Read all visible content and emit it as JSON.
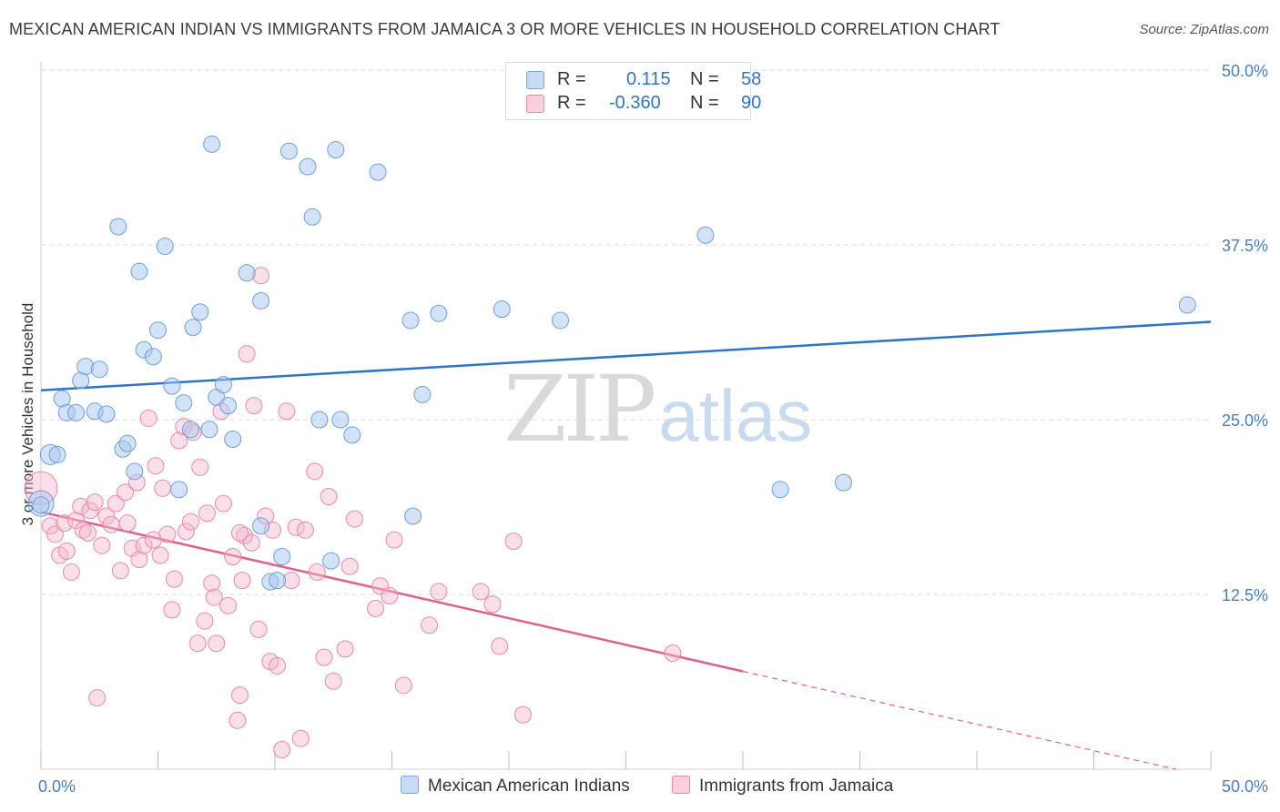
{
  "title": "MEXICAN AMERICAN INDIAN VS IMMIGRANTS FROM JAMAICA 3 OR MORE VEHICLES IN HOUSEHOLD CORRELATION CHART",
  "source": "Source: ZipAtlas.com",
  "watermark": {
    "zip": "ZIP",
    "atlas": "atlas"
  },
  "legend_top": [
    {
      "r_label": "R =",
      "r_value": "0.115",
      "n_label": "N =",
      "n_value": "58",
      "color": "#a8c8ef"
    },
    {
      "r_label": "R =",
      "r_value": "-0.360",
      "n_label": "N =",
      "n_value": "90",
      "color": "#f5b8cb"
    }
  ],
  "colors": {
    "blue_fill": "#a8c8ef",
    "blue_stroke": "#6f9fd8",
    "blue_line": "#2f74c8",
    "pink_fill": "#f5b8cb",
    "pink_stroke": "#e88aa6",
    "pink_line": "#e0608a",
    "tick_text": "#4a7cc4",
    "grid": "#d8d8d8"
  },
  "chart_data": {
    "type": "scatter",
    "title": "MEXICAN AMERICAN INDIAN VS IMMIGRANTS FROM JAMAICA 3 OR MORE VEHICLES IN HOUSEHOLD CORRELATION CHART",
    "xlabel": "",
    "ylabel": "3 or more Vehicles in Household",
    "xlim": [
      0,
      50
    ],
    "ylim": [
      0,
      50
    ],
    "x_tick_labels": [
      "0.0%",
      "50.0%"
    ],
    "y_ticks": [
      12.5,
      25.0,
      37.5,
      50.0
    ],
    "y_tick_labels": [
      "12.5%",
      "25.0%",
      "37.5%",
      "50.0%"
    ],
    "grid": true,
    "legend_position": "bottom",
    "series": [
      {
        "name": "Mexican American Indians",
        "color": "#a8c8ef",
        "trend": {
          "x": [
            0,
            50
          ],
          "y": [
            27.1,
            32.0
          ],
          "dashed_from_x": null
        },
        "points": [
          [
            0.0,
            19.0
          ],
          [
            0.4,
            22.5
          ],
          [
            0.7,
            22.5
          ],
          [
            0.9,
            26.5
          ],
          [
            1.1,
            25.5
          ],
          [
            1.5,
            25.5
          ],
          [
            1.7,
            27.8
          ],
          [
            1.9,
            28.8
          ],
          [
            2.3,
            25.6
          ],
          [
            2.5,
            28.6
          ],
          [
            2.8,
            25.4
          ],
          [
            3.3,
            38.8
          ],
          [
            3.5,
            22.9
          ],
          [
            3.7,
            23.3
          ],
          [
            4.0,
            21.3
          ],
          [
            4.2,
            35.6
          ],
          [
            4.4,
            30.0
          ],
          [
            4.8,
            29.5
          ],
          [
            5.0,
            31.4
          ],
          [
            5.3,
            37.4
          ],
          [
            5.6,
            27.4
          ],
          [
            5.9,
            20.0
          ],
          [
            6.1,
            26.2
          ],
          [
            6.4,
            24.3
          ],
          [
            6.5,
            31.6
          ],
          [
            6.8,
            32.7
          ],
          [
            7.2,
            24.3
          ],
          [
            7.3,
            44.7
          ],
          [
            7.5,
            26.6
          ],
          [
            7.8,
            27.5
          ],
          [
            8.0,
            26.0
          ],
          [
            8.2,
            23.6
          ],
          [
            8.8,
            35.5
          ],
          [
            9.4,
            17.4
          ],
          [
            9.4,
            33.5
          ],
          [
            9.8,
            13.4
          ],
          [
            10.1,
            13.5
          ],
          [
            10.3,
            15.2
          ],
          [
            10.6,
            44.2
          ],
          [
            11.4,
            43.1
          ],
          [
            11.6,
            39.5
          ],
          [
            11.9,
            25.0
          ],
          [
            12.4,
            14.9
          ],
          [
            12.6,
            44.3
          ],
          [
            12.8,
            25.0
          ],
          [
            13.3,
            23.9
          ],
          [
            14.4,
            42.7
          ],
          [
            15.8,
            32.1
          ],
          [
            15.9,
            18.1
          ],
          [
            16.3,
            26.8
          ],
          [
            17.0,
            32.6
          ],
          [
            19.7,
            32.9
          ],
          [
            22.2,
            32.1
          ],
          [
            28.4,
            38.2
          ],
          [
            31.6,
            20.0
          ],
          [
            34.3,
            20.5
          ],
          [
            49.0,
            33.2
          ],
          [
            0.0,
            18.9
          ]
        ]
      },
      {
        "name": "Immigrants from Jamaica",
        "color": "#f5b8cb",
        "trend": {
          "x": [
            0,
            30.0
          ],
          "y": [
            18.4,
            7.0
          ],
          "dashed_to": [
            48.5,
            0.0
          ]
        },
        "points": [
          [
            0.0,
            20.1
          ],
          [
            0.4,
            17.4
          ],
          [
            0.6,
            16.8
          ],
          [
            0.8,
            15.3
          ],
          [
            1.0,
            17.6
          ],
          [
            1.1,
            15.6
          ],
          [
            1.3,
            14.1
          ],
          [
            1.5,
            17.8
          ],
          [
            1.7,
            18.8
          ],
          [
            1.8,
            17.1
          ],
          [
            2.0,
            16.9
          ],
          [
            2.1,
            18.5
          ],
          [
            2.3,
            19.1
          ],
          [
            2.4,
            5.1
          ],
          [
            2.6,
            16.0
          ],
          [
            2.8,
            18.1
          ],
          [
            3.0,
            17.5
          ],
          [
            3.2,
            19.0
          ],
          [
            3.4,
            14.2
          ],
          [
            3.6,
            19.8
          ],
          [
            3.7,
            17.6
          ],
          [
            3.9,
            15.8
          ],
          [
            4.1,
            20.5
          ],
          [
            4.2,
            15.0
          ],
          [
            4.4,
            16.0
          ],
          [
            4.6,
            25.1
          ],
          [
            4.8,
            16.4
          ],
          [
            4.9,
            21.7
          ],
          [
            5.1,
            15.3
          ],
          [
            5.2,
            20.1
          ],
          [
            5.4,
            16.8
          ],
          [
            5.6,
            11.4
          ],
          [
            5.7,
            13.6
          ],
          [
            5.9,
            23.5
          ],
          [
            6.1,
            24.5
          ],
          [
            6.2,
            17.0
          ],
          [
            6.4,
            17.7
          ],
          [
            6.5,
            24.1
          ],
          [
            6.7,
            9.0
          ],
          [
            6.8,
            21.6
          ],
          [
            7.0,
            10.6
          ],
          [
            7.1,
            18.3
          ],
          [
            7.3,
            13.3
          ],
          [
            7.4,
            12.3
          ],
          [
            7.5,
            9.0
          ],
          [
            7.7,
            25.6
          ],
          [
            7.8,
            19.0
          ],
          [
            8.0,
            11.7
          ],
          [
            8.2,
            15.2
          ],
          [
            8.4,
            3.5
          ],
          [
            8.5,
            5.3
          ],
          [
            8.6,
            13.5
          ],
          [
            8.7,
            16.7
          ],
          [
            8.8,
            29.7
          ],
          [
            9.0,
            16.2
          ],
          [
            9.1,
            26.0
          ],
          [
            9.3,
            10.0
          ],
          [
            9.4,
            35.3
          ],
          [
            9.6,
            18.1
          ],
          [
            9.8,
            7.7
          ],
          [
            9.9,
            17.1
          ],
          [
            10.1,
            7.4
          ],
          [
            10.3,
            1.4
          ],
          [
            10.5,
            25.6
          ],
          [
            10.7,
            13.5
          ],
          [
            10.9,
            17.3
          ],
          [
            11.1,
            2.2
          ],
          [
            11.3,
            17.1
          ],
          [
            11.7,
            21.3
          ],
          [
            12.1,
            8.0
          ],
          [
            12.3,
            19.5
          ],
          [
            12.5,
            6.3
          ],
          [
            13.0,
            8.6
          ],
          [
            13.2,
            14.5
          ],
          [
            13.4,
            17.9
          ],
          [
            14.3,
            11.5
          ],
          [
            14.5,
            13.1
          ],
          [
            14.9,
            12.4
          ],
          [
            15.1,
            16.4
          ],
          [
            15.5,
            6.0
          ],
          [
            16.6,
            10.3
          ],
          [
            17.0,
            12.7
          ],
          [
            18.8,
            12.7
          ],
          [
            19.3,
            11.8
          ],
          [
            19.6,
            8.8
          ],
          [
            20.2,
            16.3
          ],
          [
            20.6,
            3.9
          ],
          [
            27.0,
            8.3
          ],
          [
            11.8,
            14.1
          ],
          [
            8.5,
            16.9
          ]
        ]
      }
    ]
  },
  "bottom_legend": [
    {
      "label": "Mexican American Indians",
      "color": "#a8c8ef"
    },
    {
      "label": "Immigrants from Jamaica",
      "color": "#f5b8cb"
    }
  ]
}
